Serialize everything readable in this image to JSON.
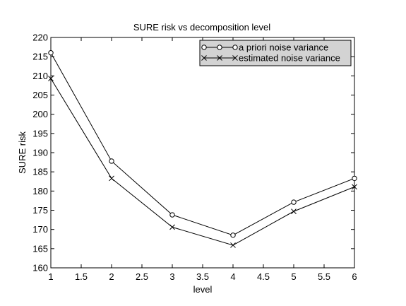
{
  "chart_data": {
    "type": "line",
    "title": "SURE risk vs decomposition level",
    "xlabel": "level",
    "ylabel": "SURE risk",
    "xlim": [
      1,
      6
    ],
    "ylim": [
      160,
      220
    ],
    "xticks": [
      1,
      1.5,
      2,
      2.5,
      3,
      3.5,
      4,
      4.5,
      5,
      5.5,
      6
    ],
    "xtick_labels": [
      "1",
      "1.5",
      "2",
      "2.5",
      "3",
      "3.5",
      "4",
      "4.5",
      "5",
      "5.5",
      "6"
    ],
    "yticks": [
      160,
      165,
      170,
      175,
      180,
      185,
      190,
      195,
      200,
      205,
      210,
      215,
      220
    ],
    "ytick_labels": [
      "160",
      "165",
      "170",
      "175",
      "180",
      "185",
      "190",
      "195",
      "200",
      "205",
      "210",
      "215",
      "220"
    ],
    "x": [
      1,
      2,
      3,
      4,
      5,
      6
    ],
    "series": [
      {
        "name": "a priori noise variance",
        "marker": "circle",
        "color": "#000000",
        "values": [
          216.0,
          187.8,
          173.8,
          168.5,
          177.1,
          183.3
        ]
      },
      {
        "name": "estimated noise variance",
        "marker": "x",
        "color": "#000000",
        "values": [
          209.3,
          183.3,
          170.6,
          165.9,
          174.7,
          181.1
        ]
      }
    ],
    "legend_position": "top-right",
    "legend_background": "#d3d3d3",
    "grid": false
  }
}
